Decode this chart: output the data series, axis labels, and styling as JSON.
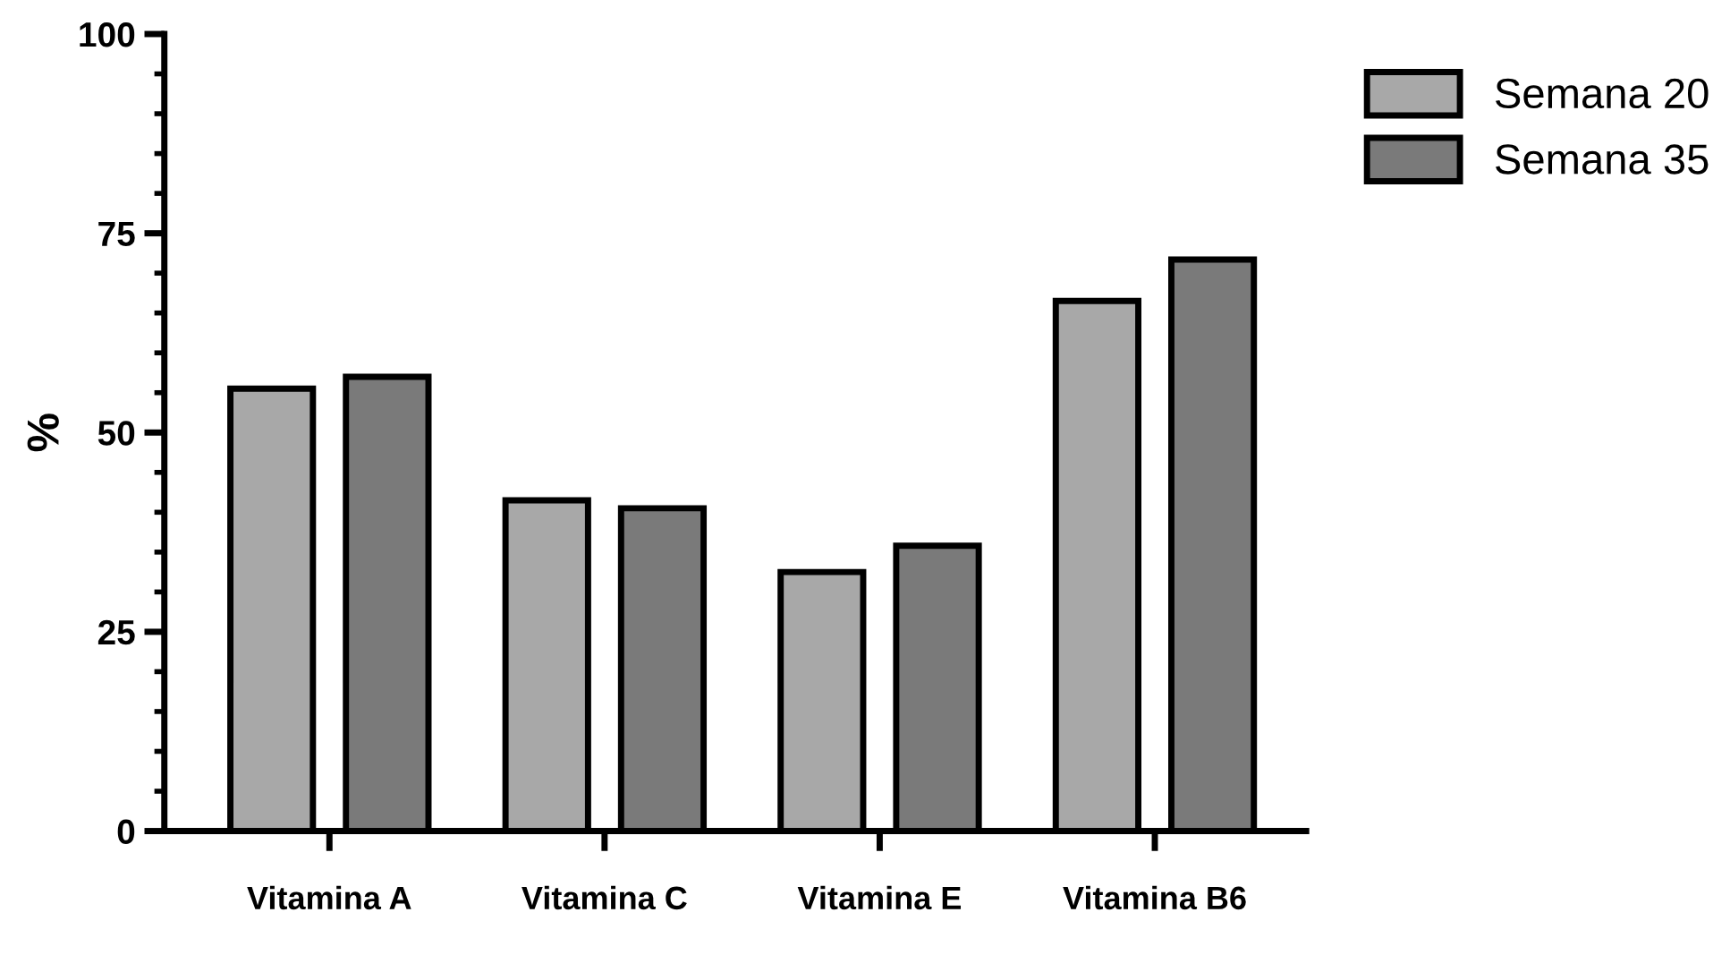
{
  "chart_data": {
    "type": "bar",
    "ylabel": "%",
    "categories": [
      "Vitamina A",
      "Vitamina C",
      "Vitamina E",
      "Vitamina B6"
    ],
    "series": [
      {
        "name": "Semana 20",
        "color": "#a8a8a8",
        "values": [
          55.5,
          41.5,
          32.5,
          66.5
        ]
      },
      {
        "name": "Semana 35",
        "color": "#7a7a7a",
        "values": [
          57,
          40.5,
          35.8,
          71.7
        ]
      }
    ],
    "ylim": [
      0,
      100
    ],
    "yticks": [
      0,
      25,
      50,
      75,
      100
    ],
    "grid": false,
    "legend": "top right"
  }
}
